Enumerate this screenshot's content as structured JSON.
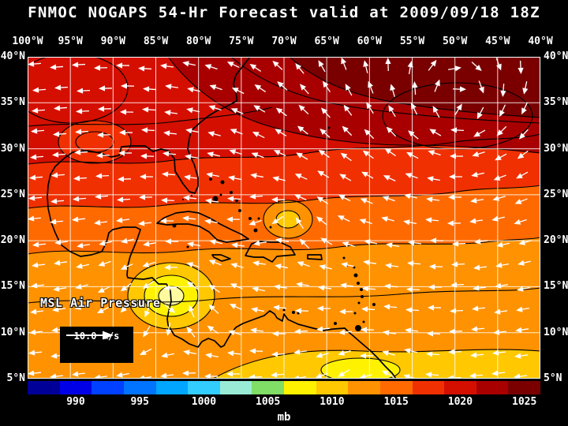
{
  "title": "FNMOC NOGAPS 54-Hr Forecast valid at 2009/09/18 18Z",
  "map": {
    "field_label": "MSL Air Pressure",
    "wind_scale_label": "10.0 m/s",
    "lon_labels": [
      "100°W",
      "95°W",
      "90°W",
      "85°W",
      "80°W",
      "75°W",
      "70°W",
      "65°W",
      "60°W",
      "55°W",
      "50°W",
      "45°W",
      "40°W"
    ],
    "lat_labels": [
      "40°N",
      "35°N",
      "30°N",
      "25°N",
      "20°N",
      "15°N",
      "10°N",
      "5°N"
    ]
  },
  "colorbar": {
    "unit": "mb",
    "tick_labels": [
      "990",
      "995",
      "1000",
      "1005",
      "1010",
      "1015",
      "1020",
      "1025"
    ],
    "colors": [
      "#000099",
      "#0000E6",
      "#0040FF",
      "#0073FF",
      "#00A6FF",
      "#33CCFF",
      "#99EBD6",
      "#80DD66",
      "#FFF200",
      "#FFC800",
      "#FF9200",
      "#FF6A00",
      "#F03000",
      "#D40F00",
      "#A80000",
      "#7A0000"
    ]
  },
  "chart_data": {
    "type": "heatmap",
    "title": "FNMOC NOGAPS 54-Hr Forecast valid at 2009/09/18 18Z",
    "model": "FNMOC NOGAPS",
    "forecast_hour": 54,
    "valid_time": "2009/09/18 18Z",
    "field": "MSL Air Pressure",
    "unit": "mb",
    "lon_ticks_deg_w": [
      100,
      95,
      90,
      85,
      80,
      75,
      70,
      65,
      60,
      55,
      50,
      45,
      40
    ],
    "lat_ticks_deg_n": [
      40,
      35,
      30,
      25,
      20,
      15,
      10,
      5
    ],
    "colorbar_ticks_mb": [
      990,
      995,
      1000,
      1005,
      1010,
      1015,
      1020,
      1025
    ],
    "colorbar_interval_mb": 2.5,
    "colorbar_range_mb": [
      987.5,
      1027.5
    ],
    "wind_reference_vector_m_s": 10.0,
    "legend_position": "bottom",
    "grid": true,
    "features": [
      {
        "kind": "high",
        "approx_lon_w": 52,
        "approx_lat_n": 33,
        "approx_pressure_mb": 1025,
        "description": "subtropical high over western Atlantic, darkest red shading with clockwise wind vectors"
      },
      {
        "kind": "low",
        "approx_lon_w": 83.5,
        "approx_lat_n": 13.5,
        "approx_pressure_mb": 1007,
        "description": "closed low with yellow core near Nicaragua coast, cyclonic wind vectors"
      },
      {
        "kind": "low",
        "approx_lon_w": 69.5,
        "approx_lat_n": 22.5,
        "approx_pressure_mb": 1011,
        "description": "small closed circulation north of Hispaniola"
      },
      {
        "kind": "gradient",
        "description": "pressure increases from ~1008 mb in the southwest Caribbean to ~1025 mb in the northeast Atlantic; easterly trade winds across the tropics"
      }
    ]
  }
}
